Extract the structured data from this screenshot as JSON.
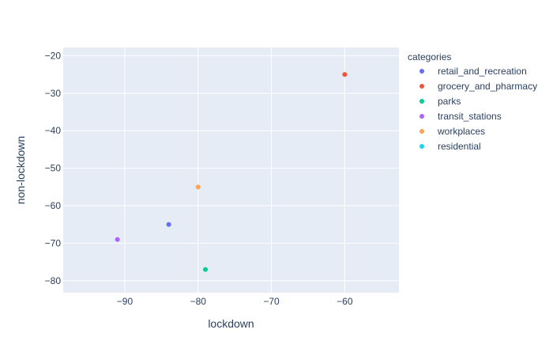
{
  "chart_data": {
    "type": "scatter",
    "title": "",
    "xlabel": "lockdown",
    "ylabel": "non-lockdown",
    "xlim": [
      -98.4,
      -52.6
    ],
    "ylim": [
      -83.2,
      -17.8
    ],
    "xticks": [
      -90,
      -80,
      -70,
      -60
    ],
    "yticks": [
      -80,
      -70,
      -60,
      -50,
      -40,
      -30,
      -20
    ],
    "xtick_labels": [
      "−90",
      "−80",
      "−70",
      "−60"
    ],
    "ytick_labels": [
      "−80",
      "−70",
      "−60",
      "−50",
      "−40",
      "−30",
      "−20"
    ],
    "grid": true,
    "legend": {
      "title": "categories",
      "placement": "right"
    },
    "series": [
      {
        "name": "retail_and_recreation",
        "color": "#636efa",
        "x": [
          -84
        ],
        "y": [
          -65
        ]
      },
      {
        "name": "grocery_and_pharmacy",
        "color": "#ef553b",
        "x": [
          -60
        ],
        "y": [
          -25
        ]
      },
      {
        "name": "parks",
        "color": "#00cc96",
        "x": [
          -79
        ],
        "y": [
          -77
        ]
      },
      {
        "name": "transit_stations",
        "color": "#ab63fa",
        "x": [
          -91
        ],
        "y": [
          -69
        ]
      },
      {
        "name": "workplaces",
        "color": "#ffa15a",
        "x": [
          -80
        ],
        "y": [
          -55
        ]
      },
      {
        "name": "residential",
        "color": "#19d3f3",
        "x": [],
        "y": []
      }
    ]
  }
}
